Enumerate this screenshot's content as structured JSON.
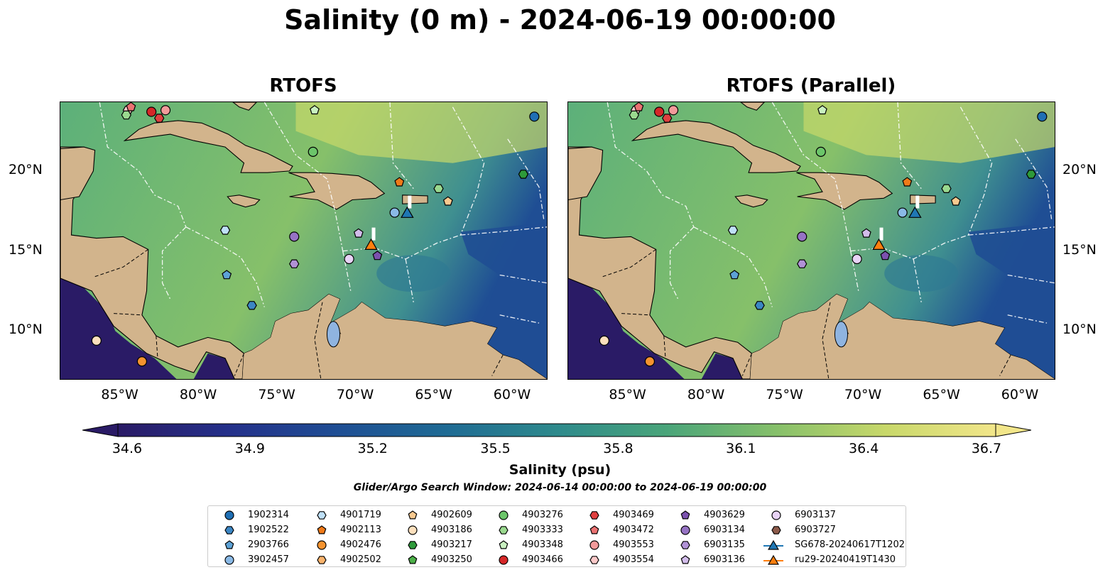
{
  "figure": {
    "title": "Salinity (0 m) - 2024-06-19 00:00:00",
    "panels": [
      {
        "title": "RTOFS"
      },
      {
        "title": "RTOFS (Parallel)"
      }
    ],
    "lon_ticks": [
      "85°W",
      "80°W",
      "75°W",
      "70°W",
      "65°W",
      "60°W"
    ],
    "lat_ticks": [
      "20°N",
      "15°N",
      "10°N"
    ],
    "colorbar": {
      "label": "Salinity (psu)",
      "ticks": [
        "34.6",
        "34.9",
        "35.2",
        "35.5",
        "35.8",
        "36.1",
        "36.4",
        "36.7"
      ],
      "colors": [
        "#2a1b66",
        "#24308a",
        "#1f4e94",
        "#1f6b94",
        "#2e8a8c",
        "#4aa57a",
        "#86c06a",
        "#c8d86a",
        "#f2e68a"
      ]
    },
    "search_window": "Glider/Argo Search Window: 2024-06-14 00:00:00 to 2024-06-19 00:00:00",
    "colors": {
      "land": "#d2b48c",
      "lake": "#8fb4e0",
      "eez": "#ffffff",
      "sea_mid": "#4aa57a",
      "sea_hi": "#c8d86a",
      "sea_low": "#1f4e94"
    }
  },
  "legend": {
    "items": [
      {
        "label": "1902314",
        "marker": "circle",
        "color": "#1f6fb4"
      },
      {
        "label": "1902522",
        "marker": "hexagon",
        "color": "#3b86c4"
      },
      {
        "label": "2903766",
        "marker": "pentagon",
        "color": "#5da2d6"
      },
      {
        "label": "3902457",
        "marker": "circle",
        "color": "#8ab9e6"
      },
      {
        "label": "4901719",
        "marker": "hexagon",
        "color": "#bfe0f7"
      },
      {
        "label": "4902113",
        "marker": "pentagon",
        "color": "#f07a18"
      },
      {
        "label": "4902476",
        "marker": "circle",
        "color": "#f5932f"
      },
      {
        "label": "4902502",
        "marker": "hexagon",
        "color": "#f9b36c"
      },
      {
        "label": "4902609",
        "marker": "pentagon",
        "color": "#f9c98f"
      },
      {
        "label": "4903186",
        "marker": "circle",
        "color": "#fde0bd"
      },
      {
        "label": "4903217",
        "marker": "hexagon",
        "color": "#2e9a3a"
      },
      {
        "label": "4903250",
        "marker": "pentagon",
        "color": "#4cb048"
      },
      {
        "label": "4903276",
        "marker": "circle",
        "color": "#6cc56a"
      },
      {
        "label": "4903333",
        "marker": "hexagon",
        "color": "#9ad98f"
      },
      {
        "label": "4903348",
        "marker": "pentagon",
        "color": "#c9f0c0"
      },
      {
        "label": "4903466",
        "marker": "circle",
        "color": "#d62728"
      },
      {
        "label": "4903469",
        "marker": "hexagon",
        "color": "#e04040"
      },
      {
        "label": "4903472",
        "marker": "pentagon",
        "color": "#eb7272"
      },
      {
        "label": "4903553",
        "marker": "circle",
        "color": "#f29a9a"
      },
      {
        "label": "4903554",
        "marker": "hexagon",
        "color": "#fbc9c9"
      },
      {
        "label": "4903629",
        "marker": "pentagon",
        "color": "#7b52ae"
      },
      {
        "label": "6903134",
        "marker": "circle",
        "color": "#9673c4"
      },
      {
        "label": "6903135",
        "marker": "hexagon",
        "color": "#b192d6"
      },
      {
        "label": "6903136",
        "marker": "pentagon",
        "color": "#d2bcea"
      },
      {
        "label": "6903137",
        "marker": "circle",
        "color": "#e8d3f6"
      },
      {
        "label": "6903727",
        "marker": "hexagon",
        "color": "#8c5a4a"
      },
      {
        "label": "SG678-20240617T1202",
        "marker": "triangle-line",
        "color": "#1f77b4"
      },
      {
        "label": "ru29-20240419T1430",
        "marker": "triangle-line",
        "color": "#ff7f0e"
      }
    ]
  },
  "observations": [
    {
      "id": "1902314",
      "lon": -58.8,
      "lat": 23.4
    },
    {
      "id": "4903466",
      "lon": -83.2,
      "lat": 23.7
    },
    {
      "id": "4903553",
      "lon": -82.3,
      "lat": 23.8
    },
    {
      "id": "4903554",
      "lon": -84.7,
      "lat": 23.8
    },
    {
      "id": "4903472",
      "lon": -84.5,
      "lat": 24.0
    },
    {
      "id": "4903469",
      "lon": -82.7,
      "lat": 23.3
    },
    {
      "id": "4903333",
      "lon": -84.8,
      "lat": 23.5
    },
    {
      "id": "4903348",
      "lon": -72.8,
      "lat": 23.8
    },
    {
      "id": "4903276",
      "lon": -72.9,
      "lat": 21.2
    },
    {
      "id": "4903217",
      "lon": -59.5,
      "lat": 19.8
    },
    {
      "id": "4902113",
      "lon": -67.4,
      "lat": 19.3
    },
    {
      "id": "4903333",
      "lon": -64.9,
      "lat": 18.9
    },
    {
      "id": "4902609",
      "lon": -64.3,
      "lat": 18.1
    },
    {
      "id": "3902457",
      "lon": -67.7,
      "lat": 17.4
    },
    {
      "id": "4901719",
      "lon": -78.5,
      "lat": 16.3
    },
    {
      "id": "6903134",
      "lon": -74.1,
      "lat": 15.9
    },
    {
      "id": "6903136",
      "lon": -70.0,
      "lat": 16.1
    },
    {
      "id": "4903629",
      "lon": -68.8,
      "lat": 14.7
    },
    {
      "id": "6903137",
      "lon": -70.6,
      "lat": 14.5
    },
    {
      "id": "6903135",
      "lon": -74.1,
      "lat": 14.2
    },
    {
      "id": "2903766",
      "lon": -78.4,
      "lat": 13.5
    },
    {
      "id": "1902522",
      "lon": -76.8,
      "lat": 11.6
    },
    {
      "id": "4903186",
      "lon": -86.7,
      "lat": 9.4
    },
    {
      "id": "4902476",
      "lon": -83.8,
      "lat": 8.1
    }
  ],
  "gliders": [
    {
      "id": "SG678-20240617T1202",
      "lon": -66.9,
      "lat": 17.4
    },
    {
      "id": "ru29-20240419T1430",
      "lon": -69.2,
      "lat": 15.4
    }
  ]
}
